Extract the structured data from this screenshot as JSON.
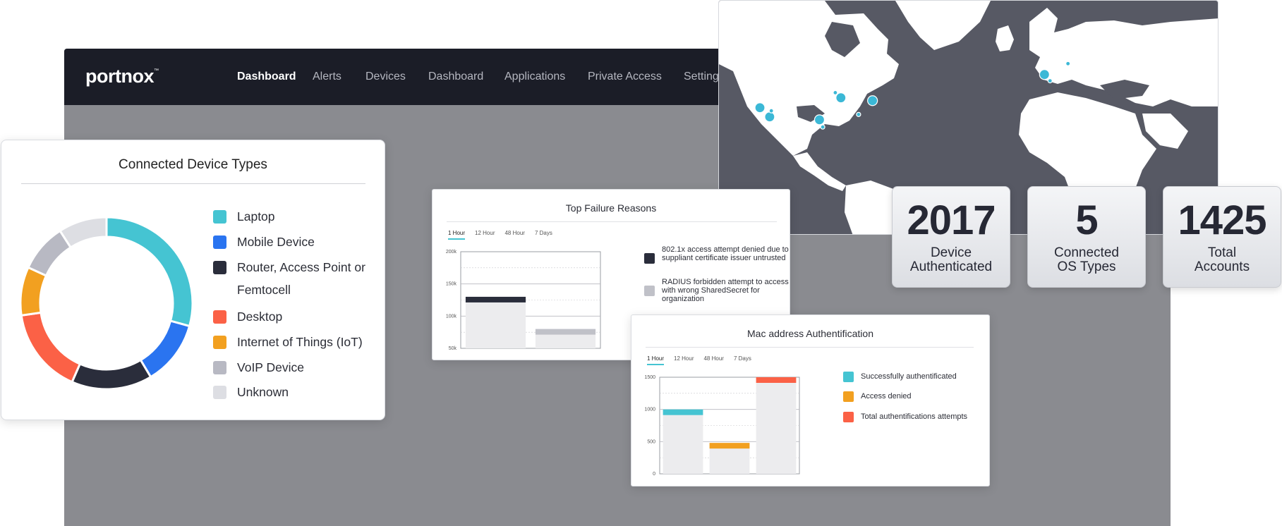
{
  "app": {
    "logo": "portnox",
    "logo_tm": "™",
    "nav": [
      {
        "label": "Dashboard",
        "active": true
      },
      {
        "label": "Alerts",
        "active": false
      },
      {
        "label": "Devices",
        "active": false
      },
      {
        "label": "Dashboard",
        "active": false
      },
      {
        "label": "Applications",
        "active": false
      },
      {
        "label": "Private Access",
        "active": false
      },
      {
        "label": "Settings",
        "active": false
      }
    ]
  },
  "device_types": {
    "title": "Connected Device Types",
    "items": [
      {
        "label": "Laptop",
        "color": "#45c4d2",
        "value": 29
      },
      {
        "label": "Mobile Device",
        "color": "#2a74f0",
        "value": 12
      },
      {
        "label": "Router, Access Point or Femtocell",
        "color": "#2a2d3b",
        "value": 15
      },
      {
        "label": "Desktop",
        "color": "#fb6146",
        "value": 16
      },
      {
        "label": "Internet of Things (IoT)",
        "color": "#f2a020",
        "value": 9
      },
      {
        "label": "VoIP Device",
        "color": "#b8b9c3",
        "value": 9
      },
      {
        "label": "Unknown",
        "color": "#dddee3",
        "value": 9
      }
    ]
  },
  "failure_reasons": {
    "title": "Top Failure Reasons",
    "tabs": [
      "1 Hour",
      "12 Hour",
      "48 Hour",
      "7 Days"
    ],
    "active_tab": 0,
    "y_ticks": [
      "200k",
      "150k",
      "100k",
      "50k"
    ],
    "legend": [
      {
        "label": "802.1x access attempt denied due to suppliant certificate issuer untrusted",
        "color": "#2a2d3b"
      },
      {
        "label": "RADIUS forbidden attempt to access with wrong SharedSecret for organization",
        "color": "#c0c1c8"
      }
    ],
    "chart_data": {
      "type": "bar",
      "categories": [
        "802.1x",
        "RADIUS"
      ],
      "values": [
        130,
        80
      ],
      "ylim": [
        50,
        200
      ]
    }
  },
  "mac_auth": {
    "title": "Mac address Authentification",
    "tabs": [
      "1 Hour",
      "12 Hour",
      "48 Hour",
      "7 Days"
    ],
    "active_tab": 0,
    "y_ticks": [
      "1500",
      "1000",
      "500",
      "0"
    ],
    "legend": [
      {
        "label": "Successfully authentificated",
        "color": "#45c4d2"
      },
      {
        "label": "Access denied",
        "color": "#f2a020"
      },
      {
        "label": "Total authentifications attempts",
        "color": "#fb6146"
      }
    ],
    "chart_data": {
      "type": "bar",
      "categories": [
        "Successfully authentificated",
        "Access denied",
        "Total authentifications attempts"
      ],
      "values": [
        1000,
        480,
        1500
      ],
      "ylim": [
        0,
        1500
      ]
    }
  },
  "map": {
    "dots": [
      {
        "lon": -122.4,
        "lat": 37.8,
        "size": "large"
      },
      {
        "lon": -118.2,
        "lat": 34.0,
        "size": "large"
      },
      {
        "lon": -117.5,
        "lat": 36.5,
        "size": "small"
      },
      {
        "lon": -87.6,
        "lat": 41.9,
        "size": "large"
      },
      {
        "lon": -74.0,
        "lat": 40.7,
        "size": "large"
      },
      {
        "lon": -96.8,
        "lat": 32.8,
        "size": "large"
      },
      {
        "lon": -90.0,
        "lat": 44.0,
        "size": "small"
      },
      {
        "lon": -80.0,
        "lat": 35.0,
        "size": "small"
      },
      {
        "lon": -95.4,
        "lat": 29.8,
        "size": "small"
      },
      {
        "lon": -0.1,
        "lat": 51.5,
        "size": "large"
      },
      {
        "lon": 2.3,
        "lat": 48.9,
        "size": "small"
      },
      {
        "lon": 10.0,
        "lat": 56.0,
        "size": "small"
      }
    ]
  },
  "stats": [
    {
      "value": "2017",
      "label_line1": "Device",
      "label_line2": "Authenticated"
    },
    {
      "value": "5",
      "label_line1": "Connected",
      "label_line2": "OS Types"
    },
    {
      "value": "1425",
      "label_line1": "Total",
      "label_line2": "Accounts"
    }
  ]
}
